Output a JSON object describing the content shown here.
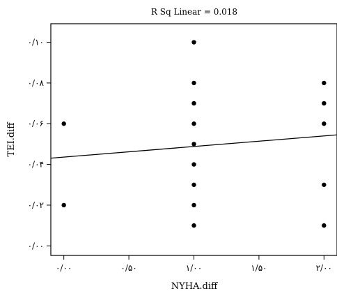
{
  "chart_data": {
    "type": "scatter",
    "title": "R Sq Linear = 0.018",
    "xlabel": "NYHA.diff",
    "ylabel": "TEI.diff",
    "xlim": [
      -0.1,
      2.1
    ],
    "ylim": [
      -0.0047,
      0.1091
    ],
    "x_ticks": [
      0,
      0.5,
      1,
      1.5,
      2
    ],
    "x_tick_labels": [
      "۰/۰۰",
      "۰/۵۰",
      "۱/۰۰",
      "۱/۵۰",
      "۲/۰۰"
    ],
    "y_ticks": [
      0,
      0.02,
      0.04,
      0.06,
      0.08,
      0.1
    ],
    "y_tick_labels": [
      "۰/۰۰",
      "۰/۰۲",
      "۰/۰۴",
      "۰/۰۶",
      "۰/۰۸",
      "۰/۱۰"
    ],
    "grid": false,
    "series": [
      {
        "points": [
          [
            0,
            0.06
          ],
          [
            0,
            0.02
          ],
          [
            1,
            0.1
          ],
          [
            1,
            0.08
          ],
          [
            1,
            0.07
          ],
          [
            1,
            0.06
          ],
          [
            1,
            0.05
          ],
          [
            1,
            0.04
          ],
          [
            1,
            0.03
          ],
          [
            1,
            0.02
          ],
          [
            1,
            0.01
          ],
          [
            2,
            0.08
          ],
          [
            2,
            0.07
          ],
          [
            2,
            0.06
          ],
          [
            2,
            0.03
          ],
          [
            2,
            0.01
          ]
        ]
      }
    ],
    "fit_line": {
      "type": "linear",
      "intercept": 0.0436,
      "slope": 0.0052
    }
  }
}
